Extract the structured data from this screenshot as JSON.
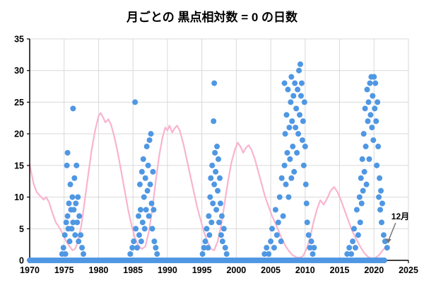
{
  "chart_data": {
    "type": "scatter",
    "title": "月ごとの 黒点相対数 = 0 の日数",
    "xlabel": "",
    "ylabel": "",
    "xlim": [
      1970,
      2025
    ],
    "ylim": [
      0,
      35
    ],
    "x_ticks": [
      1970,
      1975,
      1980,
      1985,
      1990,
      1995,
      2000,
      2005,
      2010,
      2015,
      2020,
      2025
    ],
    "y_ticks": [
      0,
      5,
      10,
      15,
      20,
      25,
      30,
      35
    ],
    "grid": true,
    "legend": "none",
    "colors": {
      "scatter": "#4f97e3",
      "line": "#f9b4cf",
      "grid": "#d9d9d9",
      "axis": "#000000",
      "annotation": "#777777"
    },
    "scatter_points": [
      [
        1974.7,
        1
      ],
      [
        1974.9,
        2
      ],
      [
        1975.1,
        4
      ],
      [
        1975.2,
        1
      ],
      [
        1975.3,
        6
      ],
      [
        1975.4,
        15
      ],
      [
        1975.5,
        17
      ],
      [
        1975.5,
        7
      ],
      [
        1975.6,
        5
      ],
      [
        1975.7,
        9
      ],
      [
        1975.8,
        3
      ],
      [
        1975.9,
        12
      ],
      [
        1976.0,
        8
      ],
      [
        1976.1,
        5
      ],
      [
        1976.2,
        10
      ],
      [
        1976.3,
        24
      ],
      [
        1976.3,
        6
      ],
      [
        1976.4,
        8
      ],
      [
        1976.5,
        13
      ],
      [
        1976.6,
        4
      ],
      [
        1976.7,
        9
      ],
      [
        1976.8,
        15
      ],
      [
        1976.9,
        6
      ],
      [
        1977.0,
        10
      ],
      [
        1977.1,
        3
      ],
      [
        1977.2,
        7
      ],
      [
        1977.4,
        4
      ],
      [
        1977.6,
        2
      ],
      [
        1977.8,
        1
      ],
      [
        1984.6,
        1
      ],
      [
        1984.9,
        2
      ],
      [
        1985.1,
        3
      ],
      [
        1985.3,
        25
      ],
      [
        1985.4,
        5
      ],
      [
        1985.6,
        2
      ],
      [
        1985.8,
        7
      ],
      [
        1985.9,
        4
      ],
      [
        1986.0,
        12
      ],
      [
        1986.1,
        8
      ],
      [
        1986.2,
        3
      ],
      [
        1986.3,
        14
      ],
      [
        1986.4,
        6
      ],
      [
        1986.5,
        16
      ],
      [
        1986.6,
        10
      ],
      [
        1986.7,
        5
      ],
      [
        1986.8,
        13
      ],
      [
        1986.9,
        8
      ],
      [
        1987.0,
        18
      ],
      [
        1987.1,
        11
      ],
      [
        1987.2,
        15
      ],
      [
        1987.3,
        7
      ],
      [
        1987.4,
        19
      ],
      [
        1987.5,
        12
      ],
      [
        1987.6,
        20
      ],
      [
        1987.7,
        9
      ],
      [
        1987.8,
        5
      ],
      [
        1987.9,
        14
      ],
      [
        1988.0,
        8
      ],
      [
        1988.1,
        3
      ],
      [
        1988.3,
        2
      ],
      [
        1988.5,
        1
      ],
      [
        1995.1,
        1
      ],
      [
        1995.3,
        2
      ],
      [
        1995.5,
        3
      ],
      [
        1995.7,
        5
      ],
      [
        1995.9,
        2
      ],
      [
        1996.0,
        7
      ],
      [
        1996.1,
        4
      ],
      [
        1996.2,
        10
      ],
      [
        1996.3,
        13
      ],
      [
        1996.4,
        6
      ],
      [
        1996.5,
        15
      ],
      [
        1996.6,
        9
      ],
      [
        1996.7,
        22
      ],
      [
        1996.8,
        28
      ],
      [
        1996.8,
        12
      ],
      [
        1996.9,
        17
      ],
      [
        1997.0,
        14
      ],
      [
        1997.1,
        8
      ],
      [
        1997.2,
        18
      ],
      [
        1997.3,
        11
      ],
      [
        1997.4,
        16
      ],
      [
        1997.5,
        6
      ],
      [
        1997.6,
        13
      ],
      [
        1997.7,
        9
      ],
      [
        1997.8,
        4
      ],
      [
        1997.9,
        7
      ],
      [
        1998.0,
        3
      ],
      [
        1998.2,
        5
      ],
      [
        1998.4,
        2
      ],
      [
        1998.6,
        1
      ],
      [
        2004.1,
        1
      ],
      [
        2004.4,
        2
      ],
      [
        2004.7,
        1
      ],
      [
        2005.0,
        3
      ],
      [
        2005.2,
        5
      ],
      [
        2005.5,
        2
      ],
      [
        2005.7,
        8
      ],
      [
        2005.9,
        4
      ],
      [
        2006.1,
        6
      ],
      [
        2006.3,
        10
      ],
      [
        2006.5,
        3
      ],
      [
        2006.6,
        13
      ],
      [
        2006.8,
        7
      ],
      [
        2007.0,
        15
      ],
      [
        2007.0,
        28
      ],
      [
        2007.1,
        20
      ],
      [
        2007.2,
        12
      ],
      [
        2007.3,
        23
      ],
      [
        2007.4,
        17
      ],
      [
        2007.5,
        27
      ],
      [
        2007.6,
        10
      ],
      [
        2007.7,
        21
      ],
      [
        2007.8,
        16
      ],
      [
        2007.9,
        25
      ],
      [
        2008.0,
        29
      ],
      [
        2008.0,
        13
      ],
      [
        2008.1,
        22
      ],
      [
        2008.2,
        18
      ],
      [
        2008.3,
        26
      ],
      [
        2008.4,
        14
      ],
      [
        2008.5,
        28
      ],
      [
        2008.6,
        21
      ],
      [
        2008.7,
        24
      ],
      [
        2008.8,
        17
      ],
      [
        2008.9,
        27
      ],
      [
        2009.0,
        20
      ],
      [
        2009.1,
        30
      ],
      [
        2009.2,
        23
      ],
      [
        2009.3,
        31
      ],
      [
        2009.4,
        26
      ],
      [
        2009.5,
        28
      ],
      [
        2009.6,
        19
      ],
      [
        2009.7,
        22
      ],
      [
        2009.8,
        15
      ],
      [
        2009.9,
        25
      ],
      [
        2010.0,
        18
      ],
      [
        2010.1,
        12
      ],
      [
        2010.2,
        9
      ],
      [
        2010.3,
        6
      ],
      [
        2010.5,
        4
      ],
      [
        2010.7,
        2
      ],
      [
        2010.9,
        3
      ],
      [
        2011.1,
        1
      ],
      [
        2011.3,
        2
      ],
      [
        2016.1,
        1
      ],
      [
        2016.4,
        2
      ],
      [
        2016.7,
        1
      ],
      [
        2016.9,
        3
      ],
      [
        2017.1,
        5
      ],
      [
        2017.3,
        2
      ],
      [
        2017.5,
        8
      ],
      [
        2017.7,
        4
      ],
      [
        2017.9,
        10
      ],
      [
        2018.0,
        6
      ],
      [
        2018.1,
        13
      ],
      [
        2018.2,
        9
      ],
      [
        2018.3,
        16
      ],
      [
        2018.4,
        11
      ],
      [
        2018.5,
        20
      ],
      [
        2018.6,
        14
      ],
      [
        2018.7,
        24
      ],
      [
        2018.8,
        18
      ],
      [
        2018.9,
        12
      ],
      [
        2019.0,
        27
      ],
      [
        2019.1,
        22
      ],
      [
        2019.2,
        25
      ],
      [
        2019.3,
        16
      ],
      [
        2019.4,
        28
      ],
      [
        2019.5,
        23
      ],
      [
        2019.6,
        29
      ],
      [
        2019.7,
        21
      ],
      [
        2019.8,
        26
      ],
      [
        2019.9,
        19
      ],
      [
        2020.0,
        29
      ],
      [
        2020.1,
        24
      ],
      [
        2020.2,
        28
      ],
      [
        2020.3,
        22
      ],
      [
        2020.4,
        15
      ],
      [
        2020.5,
        25
      ],
      [
        2020.6,
        18
      ],
      [
        2020.7,
        10
      ],
      [
        2020.8,
        13
      ],
      [
        2020.9,
        8
      ],
      [
        2021.0,
        11
      ],
      [
        2021.1,
        6
      ],
      [
        2021.2,
        9
      ],
      [
        2021.4,
        4
      ],
      [
        2021.6,
        3
      ],
      [
        2021.9,
        2
      ]
    ],
    "zero_points_band": {
      "start": 1970.0,
      "end": 2021.6,
      "step": 0.25,
      "value": 0
    },
    "line_points": [
      [
        1970.0,
        15.2
      ],
      [
        1970.3,
        13.5
      ],
      [
        1970.6,
        12.0
      ],
      [
        1971.0,
        10.8
      ],
      [
        1971.5,
        10.2
      ],
      [
        1972.0,
        9.6
      ],
      [
        1972.4,
        10.0
      ],
      [
        1972.8,
        9.2
      ],
      [
        1973.3,
        7.5
      ],
      [
        1973.8,
        6.0
      ],
      [
        1974.3,
        5.2
      ],
      [
        1974.8,
        4.2
      ],
      [
        1975.3,
        3.0
      ],
      [
        1975.8,
        2.2
      ],
      [
        1976.2,
        1.6
      ],
      [
        1976.6,
        1.8
      ],
      [
        1977.0,
        3.0
      ],
      [
        1977.5,
        5.5
      ],
      [
        1978.0,
        9.5
      ],
      [
        1978.5,
        13.5
      ],
      [
        1979.0,
        17.5
      ],
      [
        1979.5,
        20.5
      ],
      [
        1980.0,
        22.8
      ],
      [
        1980.3,
        23.3
      ],
      [
        1980.7,
        22.5
      ],
      [
        1981.0,
        21.8
      ],
      [
        1981.4,
        22.3
      ],
      [
        1981.8,
        21.5
      ],
      [
        1982.3,
        19.5
      ],
      [
        1982.8,
        17.0
      ],
      [
        1983.3,
        14.0
      ],
      [
        1983.8,
        11.0
      ],
      [
        1984.3,
        8.0
      ],
      [
        1984.8,
        5.5
      ],
      [
        1985.3,
        3.5
      ],
      [
        1985.8,
        2.3
      ],
      [
        1986.3,
        1.8
      ],
      [
        1986.8,
        2.2
      ],
      [
        1987.3,
        4.5
      ],
      [
        1987.8,
        8.0
      ],
      [
        1988.3,
        12.5
      ],
      [
        1988.8,
        16.5
      ],
      [
        1989.3,
        19.5
      ],
      [
        1989.7,
        21.0
      ],
      [
        1990.0,
        20.5
      ],
      [
        1990.3,
        21.3
      ],
      [
        1990.7,
        20.2
      ],
      [
        1991.0,
        20.8
      ],
      [
        1991.4,
        21.3
      ],
      [
        1991.8,
        20.5
      ],
      [
        1992.3,
        18.5
      ],
      [
        1992.8,
        16.0
      ],
      [
        1993.3,
        13.5
      ],
      [
        1993.8,
        11.0
      ],
      [
        1994.3,
        8.5
      ],
      [
        1994.8,
        6.5
      ],
      [
        1995.3,
        4.5
      ],
      [
        1995.8,
        3.0
      ],
      [
        1996.3,
        1.8
      ],
      [
        1996.8,
        1.6
      ],
      [
        1997.3,
        3.0
      ],
      [
        1997.8,
        5.5
      ],
      [
        1998.3,
        9.0
      ],
      [
        1998.8,
        12.5
      ],
      [
        1999.3,
        15.5
      ],
      [
        1999.8,
        17.5
      ],
      [
        2000.2,
        18.6
      ],
      [
        2000.6,
        18.0
      ],
      [
        2001.0,
        17.0
      ],
      [
        2001.4,
        17.8
      ],
      [
        2001.8,
        18.2
      ],
      [
        2002.2,
        17.5
      ],
      [
        2002.7,
        16.0
      ],
      [
        2003.2,
        14.0
      ],
      [
        2003.7,
        12.0
      ],
      [
        2004.2,
        10.0
      ],
      [
        2004.7,
        8.5
      ],
      [
        2005.2,
        7.0
      ],
      [
        2005.7,
        5.8
      ],
      [
        2006.2,
        4.5
      ],
      [
        2006.7,
        3.2
      ],
      [
        2007.2,
        2.2
      ],
      [
        2007.7,
        1.4
      ],
      [
        2008.2,
        0.8
      ],
      [
        2008.7,
        0.5
      ],
      [
        2009.2,
        0.4
      ],
      [
        2009.7,
        0.7
      ],
      [
        2010.2,
        1.8
      ],
      [
        2010.7,
        3.5
      ],
      [
        2011.2,
        6.0
      ],
      [
        2011.7,
        8.0
      ],
      [
        2012.2,
        9.5
      ],
      [
        2012.7,
        8.8
      ],
      [
        2013.2,
        9.8
      ],
      [
        2013.7,
        11.0
      ],
      [
        2014.2,
        11.6
      ],
      [
        2014.7,
        10.8
      ],
      [
        2015.2,
        9.5
      ],
      [
        2015.7,
        8.0
      ],
      [
        2016.2,
        6.5
      ],
      [
        2016.7,
        5.0
      ],
      [
        2017.2,
        3.8
      ],
      [
        2017.7,
        2.8
      ],
      [
        2018.2,
        1.8
      ],
      [
        2018.7,
        1.0
      ],
      [
        2019.2,
        0.5
      ],
      [
        2019.7,
        0.3
      ],
      [
        2020.2,
        0.4
      ],
      [
        2020.7,
        0.8
      ],
      [
        2021.2,
        1.5
      ],
      [
        2021.6,
        2.0
      ]
    ],
    "annotation": {
      "label": "12月",
      "point": [
        2021.9,
        2
      ]
    }
  }
}
